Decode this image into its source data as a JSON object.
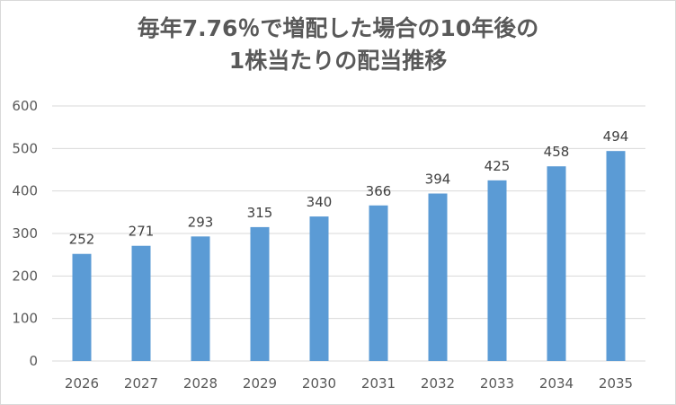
{
  "chart_data": {
    "type": "bar",
    "title_lines": [
      "毎年7.76％で増配した場合の10年後の",
      "1株当たりの配当推移"
    ],
    "categories": [
      "2026",
      "2027",
      "2028",
      "2029",
      "2030",
      "2031",
      "2032",
      "2033",
      "2034",
      "2035"
    ],
    "values": [
      252,
      271,
      293,
      315,
      340,
      366,
      394,
      425,
      458,
      494
    ],
    "data_labels": [
      "252",
      "271",
      "293",
      "315",
      "340",
      "366",
      "394",
      "425",
      "458",
      "494"
    ],
    "yticks": [
      0,
      100,
      200,
      300,
      400,
      500,
      600
    ],
    "ylim": [
      0,
      600
    ],
    "xlabel": "",
    "ylabel": "",
    "grid": true,
    "legend": "none",
    "bar_color": "#5b9bd5",
    "grid_color": "#d9d9d9"
  }
}
